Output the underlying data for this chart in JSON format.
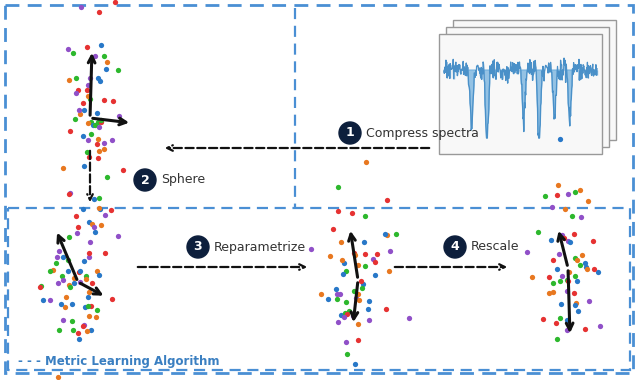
{
  "bg_color": "#ffffff",
  "box_color": "#4a8fd4",
  "dot_colors": [
    "#e63232",
    "#e87820",
    "#2db82d",
    "#2878c8",
    "#9050c8"
  ],
  "arrow_color": "#111111",
  "step_bg_color": "#0d1f3c",
  "step_text_color": "#ffffff",
  "label_color": "#333333",
  "metric_label_color": "#3a7fc1",
  "step1_label": "Compress spectra",
  "step2_label": "Sphere",
  "step3_label": "Reparametrize",
  "step4_label": "Rescale",
  "metric_label": "- - - Metric Learning Algorithm",
  "spectrum_color": "#4a90c8",
  "spectrum_fill": "#6aacdc"
}
